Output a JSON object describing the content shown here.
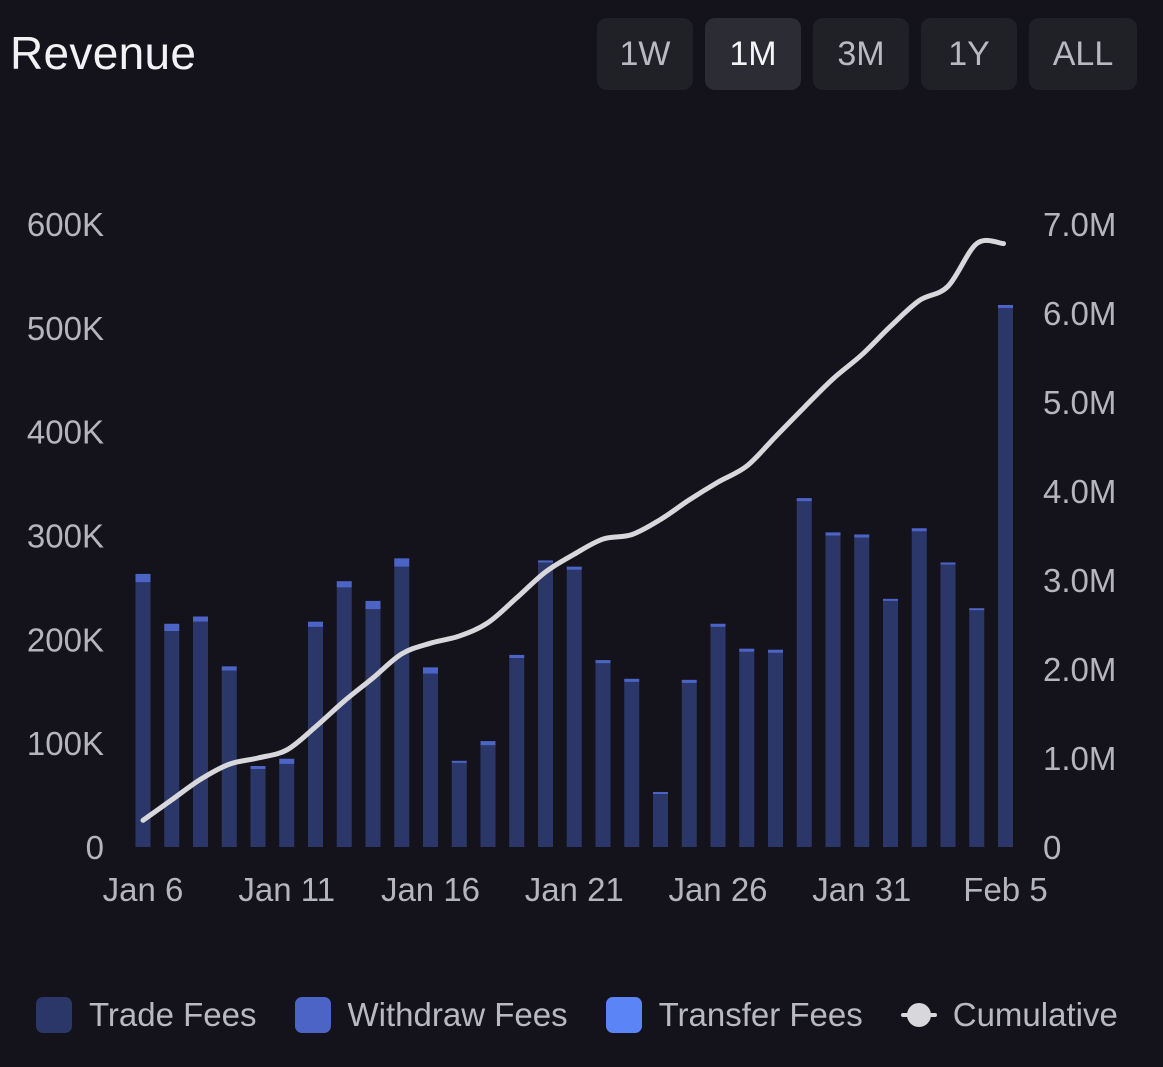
{
  "header": {
    "title": "Revenue",
    "ranges": [
      {
        "label": "1W",
        "active": false
      },
      {
        "label": "1M",
        "active": true
      },
      {
        "label": "3M",
        "active": false
      },
      {
        "label": "1Y",
        "active": false
      },
      {
        "label": "ALL",
        "active": false
      }
    ]
  },
  "legend": {
    "trade": "Trade Fees",
    "withdraw": "Withdraw Fees",
    "transfer": "Transfer Fees",
    "cumulative": "Cumulative"
  },
  "colors": {
    "trade": "#2b3768",
    "withdraw": "#4c64c6",
    "transfer": "#5b84f7",
    "cumulative": "#d8d8dc"
  },
  "chart_data": {
    "type": "bar",
    "title": "Revenue",
    "categories": [
      "Jan 6",
      "Jan 7",
      "Jan 8",
      "Jan 9",
      "Jan 10",
      "Jan 11",
      "Jan 12",
      "Jan 13",
      "Jan 14",
      "Jan 15",
      "Jan 16",
      "Jan 17",
      "Jan 18",
      "Jan 19",
      "Jan 20",
      "Jan 21",
      "Jan 22",
      "Jan 23",
      "Jan 24",
      "Jan 25",
      "Jan 26",
      "Jan 27",
      "Jan 28",
      "Jan 29",
      "Jan 30",
      "Jan 31",
      "Feb 1",
      "Feb 2",
      "Feb 3",
      "Feb 4",
      "Feb 5"
    ],
    "x_tick_labels": [
      "Jan 6",
      "Jan 11",
      "Jan 16",
      "Jan 21",
      "Jan 26",
      "Jan 31",
      "Feb 5"
    ],
    "series": [
      {
        "name": "Trade Fees",
        "values": [
          255000,
          208000,
          217000,
          170000,
          75000,
          80000,
          212000,
          250000,
          229000,
          270000,
          167000,
          81000,
          98000,
          182000,
          274000,
          267000,
          177000,
          159000,
          51000,
          158000,
          212000,
          188000,
          187000,
          333000,
          300000,
          298000,
          237000,
          304000,
          272000,
          228000,
          519000
        ]
      },
      {
        "name": "Withdraw Fees",
        "values": [
          8000,
          7000,
          5000,
          4000,
          3000,
          5000,
          5000,
          6000,
          8000,
          8000,
          6000,
          2000,
          4000,
          3000,
          2000,
          3000,
          3000,
          3000,
          2000,
          3000,
          3000,
          3000,
          3000,
          3000,
          3000,
          3000,
          2000,
          3000,
          2000,
          2000,
          3000
        ]
      },
      {
        "name": "Transfer Fees",
        "values": [
          0,
          0,
          0,
          0,
          0,
          0,
          0,
          0,
          0,
          0,
          0,
          0,
          0,
          0,
          0,
          0,
          0,
          0,
          0,
          0,
          0,
          0,
          0,
          0,
          0,
          0,
          0,
          0,
          0,
          0,
          0
        ]
      },
      {
        "name": "Cumulative",
        "axis": "right",
        "type": "line",
        "values": [
          300000,
          530000,
          760000,
          930000,
          1000000,
          1090000,
          1350000,
          1640000,
          1900000,
          2170000,
          2290000,
          2370000,
          2520000,
          2800000,
          3090000,
          3290000,
          3460000,
          3510000,
          3680000,
          3900000,
          4100000,
          4280000,
          4610000,
          4940000,
          5260000,
          5530000,
          5850000,
          6140000,
          6300000,
          6780000,
          6780000
        ]
      }
    ],
    "y_left": {
      "ticks": [
        "0",
        "100K",
        "200K",
        "300K",
        "400K",
        "500K",
        "600K"
      ],
      "ylim": [
        0,
        600000
      ]
    },
    "y_right": {
      "ticks": [
        "0",
        "1.0M",
        "2.0M",
        "3.0M",
        "4.0M",
        "5.0M",
        "6.0M",
        "7.0M"
      ],
      "ylim": [
        0,
        7000000
      ]
    },
    "xlabel": "",
    "ylabel": ""
  }
}
